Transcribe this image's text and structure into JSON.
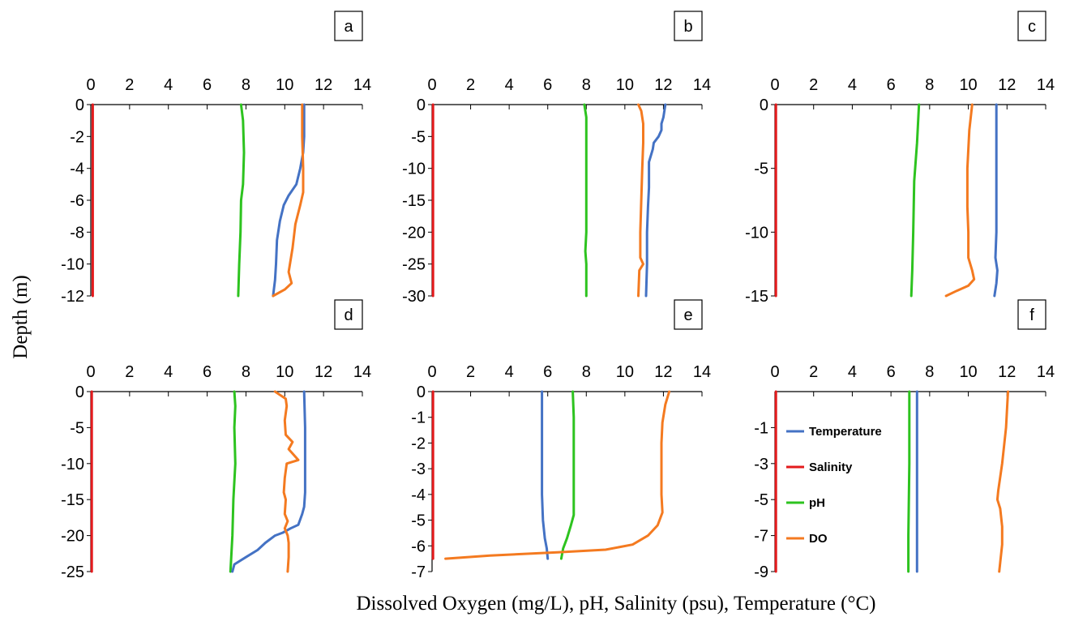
{
  "chart_data": {
    "type": "line",
    "layout": "2x3 panels",
    "xlabel": "Dissolved Oxygen (mg/L), pH, Salinity (psu), Temperature (°C)",
    "ylabel": "Depth (m)",
    "xlim": [
      0,
      14
    ],
    "x_ticks": [
      0,
      2,
      4,
      6,
      8,
      10,
      12,
      14
    ],
    "x_tick_labels": [
      "0",
      "2",
      "4",
      "6",
      "8",
      "10",
      "12",
      "14"
    ],
    "x_axis_position": "top",
    "colors": {
      "Temperature": "#4472C4",
      "Salinity": "#E31A1C",
      "pH": "#2DC31F",
      "DO": "#F47A20"
    },
    "legend": {
      "panel": "f",
      "placement": "left-center",
      "entries": [
        "Temperature",
        "Salinity",
        "pH",
        "DO"
      ]
    },
    "panels": [
      {
        "label": "a",
        "ylim": [
          -12,
          0
        ],
        "y_ticks": [
          0,
          -2,
          -4,
          -6,
          -8,
          -10,
          -12
        ],
        "y_tick_labels": [
          "0",
          "-2",
          "-4",
          "-6",
          "-8",
          "-10",
          "-12"
        ],
        "series": [
          {
            "name": "Temperature",
            "points": [
              [
                11.0,
                0
              ],
              [
                11.0,
                -1
              ],
              [
                11.0,
                -2
              ],
              [
                10.95,
                -3
              ],
              [
                10.8,
                -4
              ],
              [
                10.6,
                -5
              ],
              [
                10.2,
                -5.7
              ],
              [
                9.95,
                -6.3
              ],
              [
                9.75,
                -7.3
              ],
              [
                9.6,
                -8.5
              ],
              [
                9.55,
                -10
              ],
              [
                9.5,
                -11
              ],
              [
                9.4,
                -12
              ]
            ]
          },
          {
            "name": "Salinity",
            "points": [
              [
                0.1,
                0
              ],
              [
                0.1,
                -12
              ]
            ]
          },
          {
            "name": "pH",
            "points": [
              [
                7.75,
                0
              ],
              [
                7.85,
                -1
              ],
              [
                7.9,
                -3
              ],
              [
                7.85,
                -5
              ],
              [
                7.75,
                -6
              ],
              [
                7.72,
                -8
              ],
              [
                7.65,
                -10
              ],
              [
                7.6,
                -12
              ]
            ]
          },
          {
            "name": "DO",
            "points": [
              [
                10.9,
                0
              ],
              [
                10.9,
                -2
              ],
              [
                10.95,
                -4
              ],
              [
                10.95,
                -5.5
              ],
              [
                10.8,
                -6.3
              ],
              [
                10.55,
                -7.5
              ],
              [
                10.4,
                -9
              ],
              [
                10.2,
                -10.5
              ],
              [
                10.35,
                -11.2
              ],
              [
                10.0,
                -11.6
              ],
              [
                9.4,
                -12
              ]
            ]
          }
        ]
      },
      {
        "label": "b",
        "ylim": [
          -30,
          0
        ],
        "y_ticks": [
          0,
          -5,
          -10,
          -15,
          -20,
          -25,
          -30
        ],
        "y_tick_labels": [
          "0",
          "-5",
          "-10",
          "-15",
          "-20",
          "-25",
          "-30"
        ],
        "series": [
          {
            "name": "Temperature",
            "points": [
              [
                12.1,
                0
              ],
              [
                12.0,
                -2
              ],
              [
                11.9,
                -3
              ],
              [
                11.9,
                -4
              ],
              [
                11.75,
                -5
              ],
              [
                11.5,
                -6
              ],
              [
                11.45,
                -7
              ],
              [
                11.25,
                -9
              ],
              [
                11.25,
                -13
              ],
              [
                11.2,
                -16
              ],
              [
                11.15,
                -20
              ],
              [
                11.15,
                -25
              ],
              [
                11.1,
                -30
              ]
            ]
          },
          {
            "name": "Salinity",
            "points": [
              [
                0.05,
                0
              ],
              [
                0.05,
                -30
              ]
            ]
          },
          {
            "name": "pH",
            "points": [
              [
                7.9,
                0
              ],
              [
                8.0,
                -2
              ],
              [
                8.0,
                -10
              ],
              [
                8.0,
                -20
              ],
              [
                7.95,
                -23
              ],
              [
                8.0,
                -25
              ],
              [
                8.0,
                -30
              ]
            ]
          },
          {
            "name": "DO",
            "points": [
              [
                10.7,
                0
              ],
              [
                10.85,
                -1
              ],
              [
                10.95,
                -3
              ],
              [
                10.95,
                -6
              ],
              [
                10.9,
                -10
              ],
              [
                10.85,
                -15
              ],
              [
                10.8,
                -20
              ],
              [
                10.8,
                -24
              ],
              [
                10.95,
                -25
              ],
              [
                10.75,
                -26
              ],
              [
                10.7,
                -30
              ]
            ]
          }
        ]
      },
      {
        "label": "c",
        "ylim": [
          -15,
          0
        ],
        "y_ticks": [
          0,
          -5,
          -10,
          -15
        ],
        "y_tick_labels": [
          "0",
          "-5",
          "-10",
          "-15"
        ],
        "series": [
          {
            "name": "Temperature",
            "points": [
              [
                11.45,
                0
              ],
              [
                11.45,
                -5
              ],
              [
                11.45,
                -10
              ],
              [
                11.4,
                -12
              ],
              [
                11.5,
                -13
              ],
              [
                11.45,
                -14
              ],
              [
                11.35,
                -15
              ]
            ]
          },
          {
            "name": "Salinity",
            "points": [
              [
                0.05,
                0
              ],
              [
                0.05,
                -15
              ]
            ]
          },
          {
            "name": "pH",
            "points": [
              [
                7.45,
                0
              ],
              [
                7.35,
                -3
              ],
              [
                7.2,
                -6
              ],
              [
                7.15,
                -10
              ],
              [
                7.1,
                -13
              ],
              [
                7.05,
                -15
              ]
            ]
          },
          {
            "name": "DO",
            "points": [
              [
                10.2,
                0
              ],
              [
                10.05,
                -2
              ],
              [
                9.95,
                -5
              ],
              [
                9.95,
                -8
              ],
              [
                10.0,
                -10
              ],
              [
                10.0,
                -12
              ],
              [
                10.2,
                -13
              ],
              [
                10.3,
                -13.7
              ],
              [
                10.0,
                -14.2
              ],
              [
                9.4,
                -14.6
              ],
              [
                8.85,
                -15
              ]
            ]
          }
        ]
      },
      {
        "label": "d",
        "ylim": [
          -25,
          0
        ],
        "y_ticks": [
          0,
          -5,
          -10,
          -15,
          -20,
          -25
        ],
        "y_tick_labels": [
          "0",
          "-5",
          "-10",
          "-15",
          "-20",
          "-25"
        ],
        "series": [
          {
            "name": "Temperature",
            "points": [
              [
                11.0,
                0
              ],
              [
                11.05,
                -5
              ],
              [
                11.05,
                -10
              ],
              [
                11.05,
                -14
              ],
              [
                11.0,
                -16
              ],
              [
                10.9,
                -17
              ],
              [
                10.7,
                -18.5
              ],
              [
                10.3,
                -19
              ],
              [
                9.9,
                -19.6
              ],
              [
                9.5,
                -20
              ],
              [
                9.0,
                -21
              ],
              [
                8.6,
                -22
              ],
              [
                8.0,
                -23
              ],
              [
                7.4,
                -24
              ],
              [
                7.3,
                -25
              ]
            ]
          },
          {
            "name": "Salinity",
            "points": [
              [
                0.05,
                0
              ],
              [
                0.05,
                -25
              ]
            ]
          },
          {
            "name": "pH",
            "points": [
              [
                7.4,
                0
              ],
              [
                7.45,
                -2
              ],
              [
                7.4,
                -5
              ],
              [
                7.45,
                -10
              ],
              [
                7.35,
                -15
              ],
              [
                7.3,
                -20
              ],
              [
                7.2,
                -25
              ]
            ]
          },
          {
            "name": "DO",
            "points": [
              [
                9.5,
                0
              ],
              [
                10.05,
                -1
              ],
              [
                10.1,
                -2
              ],
              [
                10.0,
                -4
              ],
              [
                10.05,
                -6
              ],
              [
                10.4,
                -7
              ],
              [
                10.2,
                -8
              ],
              [
                10.7,
                -9.5
              ],
              [
                10.1,
                -10
              ],
              [
                10.0,
                -12
              ],
              [
                9.95,
                -14
              ],
              [
                10.05,
                -15
              ],
              [
                10.0,
                -17
              ],
              [
                10.15,
                -18
              ],
              [
                10.0,
                -19
              ],
              [
                10.15,
                -20
              ],
              [
                10.2,
                -21
              ],
              [
                10.2,
                -23
              ],
              [
                10.15,
                -25
              ]
            ]
          }
        ]
      },
      {
        "label": "e",
        "ylim": [
          -7,
          0
        ],
        "y_ticks": [
          0,
          -1,
          -2,
          -3,
          -4,
          -5,
          -6,
          -7
        ],
        "y_tick_labels": [
          "0",
          "-1",
          "-2",
          "-3",
          "-4",
          "-5",
          "-6",
          "-7"
        ],
        "series": [
          {
            "name": "Temperature",
            "points": [
              [
                5.7,
                0
              ],
              [
                5.7,
                -1
              ],
              [
                5.7,
                -2
              ],
              [
                5.7,
                -3
              ],
              [
                5.7,
                -4
              ],
              [
                5.75,
                -5
              ],
              [
                5.85,
                -5.7
              ],
              [
                5.95,
                -6.1
              ],
              [
                6.0,
                -6.5
              ]
            ]
          },
          {
            "name": "Salinity",
            "points": [
              [
                0.05,
                0
              ],
              [
                0.05,
                -6.5
              ]
            ]
          },
          {
            "name": "pH",
            "points": [
              [
                7.3,
                0
              ],
              [
                7.35,
                -1
              ],
              [
                7.35,
                -2
              ],
              [
                7.35,
                -3
              ],
              [
                7.35,
                -4
              ],
              [
                7.35,
                -4.8
              ],
              [
                7.2,
                -5.2
              ],
              [
                7.0,
                -5.7
              ],
              [
                6.8,
                -6.1
              ],
              [
                6.7,
                -6.5
              ]
            ]
          },
          {
            "name": "DO",
            "points": [
              [
                12.3,
                0
              ],
              [
                12.1,
                -0.5
              ],
              [
                11.95,
                -1.2
              ],
              [
                11.9,
                -2
              ],
              [
                11.9,
                -3
              ],
              [
                11.9,
                -4
              ],
              [
                11.95,
                -4.7
              ],
              [
                11.7,
                -5.2
              ],
              [
                11.2,
                -5.6
              ],
              [
                10.4,
                -5.95
              ],
              [
                9.0,
                -6.15
              ],
              [
                6.5,
                -6.25
              ],
              [
                3.0,
                -6.38
              ],
              [
                0.7,
                -6.5
              ]
            ]
          }
        ]
      },
      {
        "label": "f",
        "ylim": [
          -9,
          1
        ],
        "y_ticks": [
          -1,
          -3,
          -5,
          -7,
          -9
        ],
        "y_tick_labels": [
          "-1",
          "-3",
          "-5",
          "-7",
          "-9"
        ],
        "series": [
          {
            "name": "Temperature",
            "points": [
              [
                7.35,
                1
              ],
              [
                7.35,
                -3
              ],
              [
                7.35,
                -7
              ],
              [
                7.35,
                -9
              ]
            ]
          },
          {
            "name": "Salinity",
            "points": [
              [
                0.05,
                1
              ],
              [
                0.05,
                -9
              ]
            ]
          },
          {
            "name": "pH",
            "points": [
              [
                6.95,
                1
              ],
              [
                6.95,
                -3
              ],
              [
                6.9,
                -7
              ],
              [
                6.9,
                -9
              ]
            ]
          },
          {
            "name": "DO",
            "points": [
              [
                12.05,
                1
              ],
              [
                11.95,
                -1
              ],
              [
                11.75,
                -3
              ],
              [
                11.55,
                -4.5
              ],
              [
                11.5,
                -5
              ],
              [
                11.65,
                -5.5
              ],
              [
                11.75,
                -6.5
              ],
              [
                11.75,
                -7.5
              ],
              [
                11.65,
                -8.5
              ],
              [
                11.6,
                -9
              ]
            ]
          }
        ]
      }
    ]
  }
}
